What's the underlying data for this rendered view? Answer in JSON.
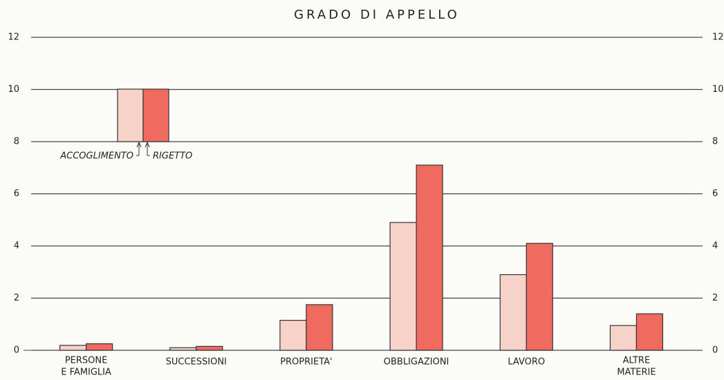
{
  "chart_data": {
    "type": "bar",
    "title": "GRADO DI APPELLO",
    "categories": [
      [
        "PERSONE",
        "E FAMIGLIA"
      ],
      [
        "SUCCESSIONI"
      ],
      [
        "PROPRIETA'"
      ],
      [
        "OBBLIGAZIONI"
      ],
      [
        "LAVORO"
      ],
      [
        "ALTRE",
        "MATERIE"
      ]
    ],
    "series": [
      {
        "name": "ACCOGLIMENTO",
        "color": "#f7d2c8",
        "values": [
          0.19,
          0.1,
          1.15,
          4.9,
          2.9,
          0.95
        ]
      },
      {
        "name": "RIGETTO",
        "color": "#ef6b5f",
        "values": [
          0.25,
          0.15,
          1.75,
          7.1,
          4.1,
          1.4
        ]
      }
    ],
    "ylim": [
      0,
      12
    ],
    "yticks": [
      0,
      2,
      4,
      6,
      8,
      10,
      12
    ],
    "y2lim": [
      0,
      12
    ],
    "y2ticks": [
      0,
      2,
      4,
      6,
      8,
      10,
      12
    ],
    "grid": true
  }
}
